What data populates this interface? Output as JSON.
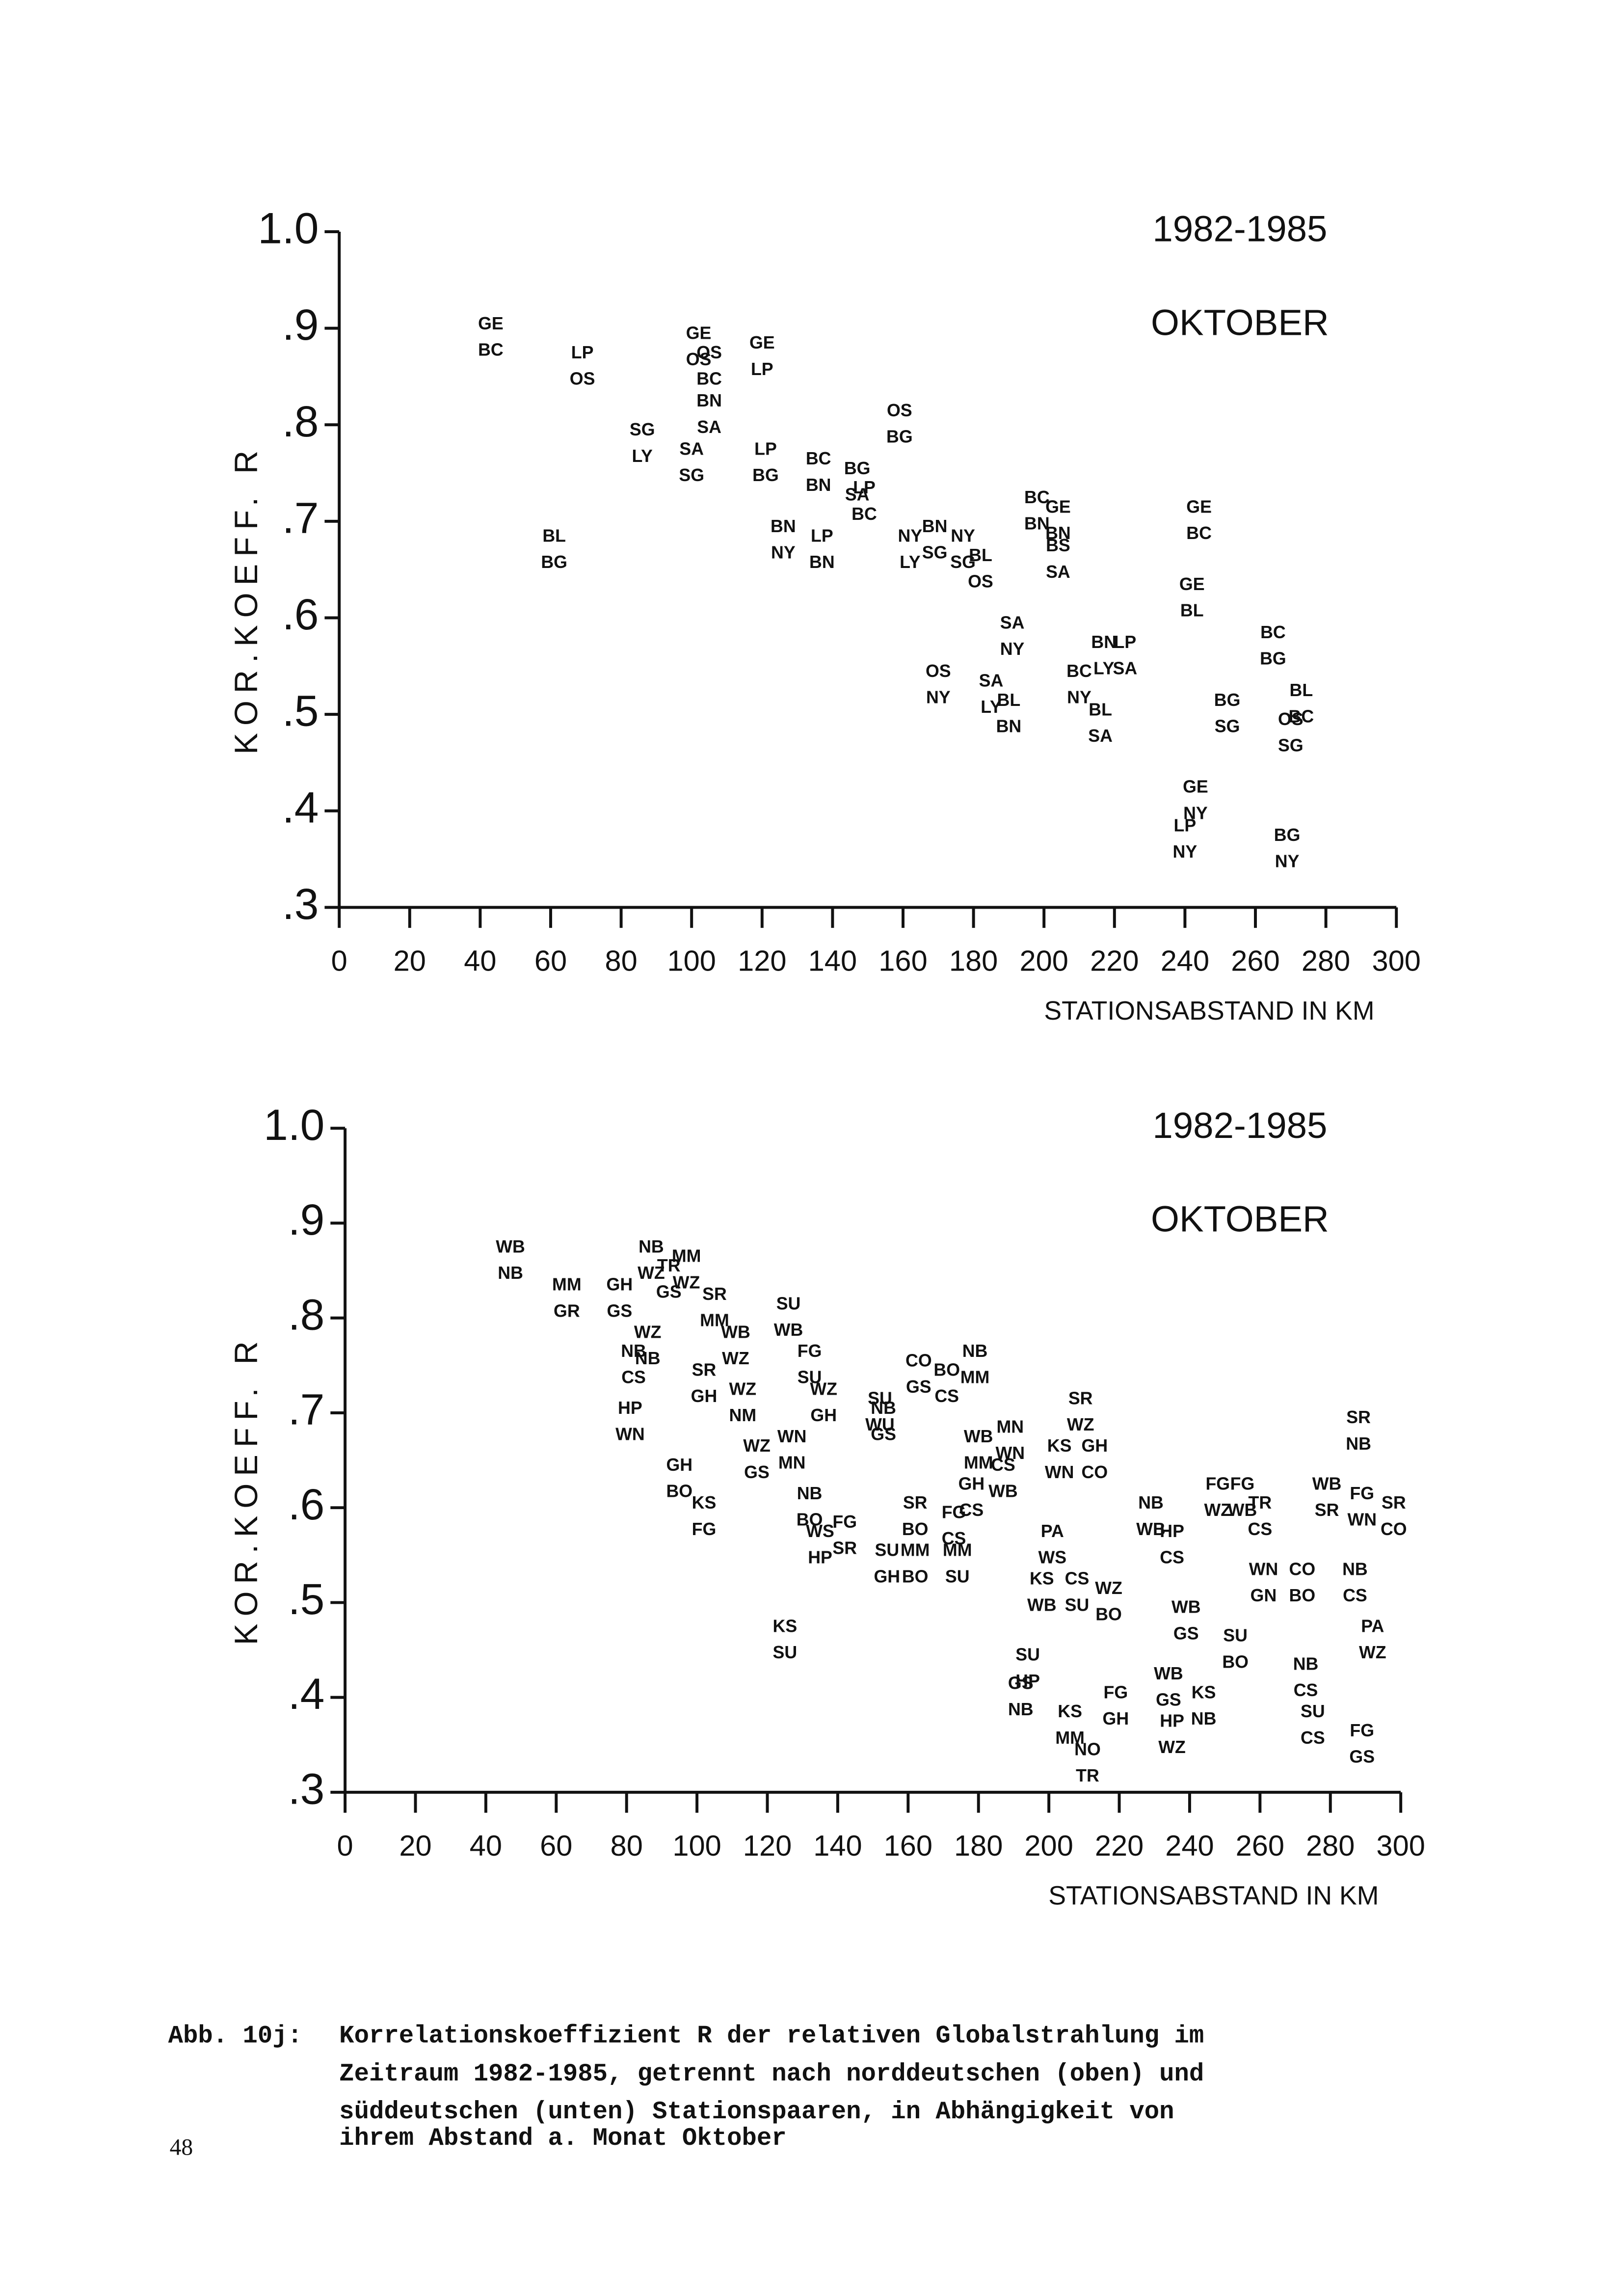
{
  "chart_data": [
    {
      "type": "scatter",
      "annotations": [
        "1982-1985",
        "OKTOBER"
      ],
      "x_label": "STATIONSABSTAND IN KM",
      "y_label": "KOR.KOEFF. R",
      "xlim": [
        0,
        300
      ],
      "ylim": [
        0.3,
        1.0
      ],
      "xticks": [
        0,
        20,
        40,
        60,
        80,
        100,
        120,
        140,
        160,
        180,
        200,
        220,
        240,
        260,
        280,
        300
      ],
      "yticks": [
        {
          "value": 0.3,
          "label": ".3"
        },
        {
          "value": 0.4,
          "label": ".4"
        },
        {
          "value": 0.5,
          "label": ".5"
        },
        {
          "value": 0.6,
          "label": ".6"
        },
        {
          "value": 0.7,
          "label": ".7"
        },
        {
          "value": 0.8,
          "label": ".8"
        },
        {
          "value": 0.9,
          "label": ".9"
        },
        {
          "value": 1.0,
          "label": "1.0"
        }
      ],
      "series": [
        {
          "color": "#111",
          "x": [
            43,
            69,
            61,
            86,
            102,
            105,
            105,
            100,
            120,
            121,
            136,
            147,
            149,
            126,
            137,
            159,
            162,
            169,
            177,
            182,
            170,
            191,
            185,
            190,
            198,
            204,
            204,
            210,
            217,
            223,
            216,
            244,
            242,
            252,
            265,
            273,
            270,
            243,
            240,
            269
          ],
          "values": [
            0.89,
            0.86,
            0.67,
            0.78,
            0.88,
            0.86,
            0.81,
            0.76,
            0.87,
            0.76,
            0.75,
            0.74,
            0.72,
            0.68,
            0.67,
            0.8,
            0.67,
            0.68,
            0.67,
            0.65,
            0.53,
            0.58,
            0.52,
            0.5,
            0.71,
            0.7,
            0.66,
            0.53,
            0.56,
            0.56,
            0.49,
            0.7,
            0.62,
            0.5,
            0.57,
            0.51,
            0.48,
            0.41,
            0.37,
            0.36
          ],
          "labels": [
            [
              "GE",
              "BC"
            ],
            [
              "LP",
              "OS"
            ],
            [
              "BL",
              "BG"
            ],
            [
              "SG",
              "LY"
            ],
            [
              "GE",
              "OS"
            ],
            [
              "OS",
              "BC"
            ],
            [
              "BN",
              "SA"
            ],
            [
              "SA",
              "SG"
            ],
            [
              "GE",
              "LP"
            ],
            [
              "LP",
              "BG"
            ],
            [
              "BC",
              "BN"
            ],
            [
              "BG",
              "SA"
            ],
            [
              "LP",
              "BC"
            ],
            [
              "BN",
              "NY"
            ],
            [
              "LP",
              "BN"
            ],
            [
              "OS",
              "BG"
            ],
            [
              "NY",
              "LY"
            ],
            [
              "BN",
              "SG"
            ],
            [
              "NY",
              "SG"
            ],
            [
              "BL",
              "OS"
            ],
            [
              "OS",
              "NY"
            ],
            [
              "SA",
              "NY"
            ],
            [
              "SA",
              "LY"
            ],
            [
              "BL",
              "BN"
            ],
            [
              "BC",
              "BN"
            ],
            [
              "GE",
              "BN"
            ],
            [
              "BS",
              "SA"
            ],
            [
              "BC",
              "NY"
            ],
            [
              "BN",
              "LY"
            ],
            [
              "LP",
              "SA"
            ],
            [
              "BL",
              "SA"
            ],
            [
              "GE",
              "BC"
            ],
            [
              "GE",
              "BL"
            ],
            [
              "BG",
              "SG"
            ],
            [
              "BC",
              "BG"
            ],
            [
              "BL",
              "BC"
            ],
            [
              "OS",
              "SG"
            ],
            [
              "GE",
              "NY"
            ],
            [
              "LP",
              "NY"
            ],
            [
              "BG",
              "NY"
            ]
          ]
        }
      ]
    },
    {
      "type": "scatter",
      "annotations": [
        "1982-1985",
        "OKTOBER"
      ],
      "x_label": "STATIONSABSTAND IN KM",
      "y_label": "KOR.KOEFF. R",
      "xlim": [
        0,
        300
      ],
      "ylim": [
        0.3,
        1.0
      ],
      "xticks": [
        0,
        20,
        40,
        60,
        80,
        100,
        120,
        140,
        160,
        180,
        200,
        220,
        240,
        260,
        280,
        300
      ],
      "yticks": [
        {
          "value": 0.3,
          "label": ".3"
        },
        {
          "value": 0.4,
          "label": ".4"
        },
        {
          "value": 0.5,
          "label": ".5"
        },
        {
          "value": 0.6,
          "label": ".6"
        },
        {
          "value": 0.7,
          "label": ".7"
        },
        {
          "value": 0.8,
          "label": ".8"
        },
        {
          "value": 0.9,
          "label": ".9"
        },
        {
          "value": 1.0,
          "label": "1.0"
        }
      ],
      "series": [
        {
          "color": "#111",
          "x": [
            47,
            63,
            78,
            87,
            92,
            97,
            86,
            82,
            81,
            105,
            111,
            102,
            113,
            126,
            132,
            136,
            95,
            102,
            117,
            127,
            132,
            135,
            142,
            125,
            154,
            152,
            153,
            163,
            171,
            179,
            162,
            162,
            173,
            174,
            178,
            180,
            189,
            187,
            209,
            203,
            213,
            201,
            198,
            208,
            217,
            194,
            192,
            206,
            219,
            211,
            229,
            235,
            248,
            255,
            260,
            239,
            234,
            244,
            235,
            253,
            261,
            272,
            273,
            275,
            279,
            288,
            289,
            298,
            287,
            292,
            289
          ],
          "values": [
            0.86,
            0.82,
            0.82,
            0.86,
            0.84,
            0.85,
            0.77,
            0.75,
            0.69,
            0.81,
            0.77,
            0.73,
            0.71,
            0.8,
            0.75,
            0.71,
            0.63,
            0.59,
            0.65,
            0.66,
            0.6,
            0.56,
            0.57,
            0.46,
            0.54,
            0.7,
            0.69,
            0.74,
            0.73,
            0.75,
            0.59,
            0.54,
            0.58,
            0.54,
            0.61,
            0.66,
            0.67,
            0.63,
            0.7,
            0.65,
            0.65,
            0.56,
            0.51,
            0.51,
            0.5,
            0.43,
            0.4,
            0.37,
            0.39,
            0.33,
            0.59,
            0.56,
            0.61,
            0.61,
            0.59,
            0.48,
            0.41,
            0.39,
            0.36,
            0.45,
            0.52,
            0.52,
            0.42,
            0.37,
            0.61,
            0.68,
            0.6,
            0.59,
            0.52,
            0.46,
            0.35
          ],
          "labels": [
            [
              "WB",
              "NB"
            ],
            [
              "MM",
              "GR"
            ],
            [
              "GH",
              "GS"
            ],
            [
              "NB",
              "WZ"
            ],
            [
              "TR",
              "GS"
            ],
            [
              "MM",
              "WZ"
            ],
            [
              "WZ",
              "NB"
            ],
            [
              "NB",
              "CS"
            ],
            [
              "HP",
              "WN"
            ],
            [
              "SR",
              "MM"
            ],
            [
              "WB",
              "WZ"
            ],
            [
              "SR",
              "GH"
            ],
            [
              "WZ",
              "NM"
            ],
            [
              "SU",
              "WB"
            ],
            [
              "FG",
              "SU"
            ],
            [
              "WZ",
              "GH"
            ],
            [
              "GH",
              "BO"
            ],
            [
              "KS",
              "FG"
            ],
            [
              "WZ",
              "GS"
            ],
            [
              "WN",
              "MN"
            ],
            [
              "NB",
              "BO"
            ],
            [
              "WS",
              "HP"
            ],
            [
              "FG",
              "SR"
            ],
            [
              "KS",
              "SU"
            ],
            [
              "SU",
              "GH"
            ],
            [
              "SU",
              "WU"
            ],
            [
              "NB",
              "GS"
            ],
            [
              "CO",
              "GS"
            ],
            [
              "BO",
              "CS"
            ],
            [
              "NB",
              "MM"
            ],
            [
              "SR",
              "BO"
            ],
            [
              "MM",
              "BO"
            ],
            [
              "FG",
              "CS"
            ],
            [
              "MM",
              "SU"
            ],
            [
              "GH",
              "CS"
            ],
            [
              "WB",
              "MM"
            ],
            [
              "MN",
              "WN"
            ],
            [
              "CS",
              "WB"
            ],
            [
              "SR",
              "WZ"
            ],
            [
              "KS",
              "WN"
            ],
            [
              "GH",
              "CO"
            ],
            [
              "PA",
              "WS"
            ],
            [
              "KS",
              "WB"
            ],
            [
              "CS",
              "SU"
            ],
            [
              "WZ",
              "BO"
            ],
            [
              "SU",
              "HP"
            ],
            [
              "GS",
              "NB"
            ],
            [
              "KS",
              "MM"
            ],
            [
              "FG",
              "GH"
            ],
            [
              "NO",
              "TR"
            ],
            [
              "NB",
              "WB"
            ],
            [
              "HP",
              "CS"
            ],
            [
              "FG",
              "WZ"
            ],
            [
              "FG",
              "WB"
            ],
            [
              "TR",
              "CS"
            ],
            [
              "WB",
              "GS"
            ],
            [
              "WB",
              "GS"
            ],
            [
              "KS",
              "NB"
            ],
            [
              "HP",
              "WZ"
            ],
            [
              "SU",
              "BO"
            ],
            [
              "WN",
              "GN"
            ],
            [
              "CO",
              "BO"
            ],
            [
              "NB",
              "CS"
            ],
            [
              "SU",
              "CS"
            ],
            [
              "WB",
              "SR"
            ],
            [
              "SR",
              "NB"
            ],
            [
              "FG",
              "WN"
            ],
            [
              "SR",
              "CO"
            ],
            [
              "NB",
              "CS"
            ],
            [
              "PA",
              "WZ"
            ],
            [
              "FG",
              "GS"
            ]
          ]
        }
      ]
    }
  ],
  "caption": {
    "label": "Abb. 10j:",
    "lines": [
      "Korrelationskoeffizient R der relativen Globalstrahlung im",
      "Zeitraum 1982-1985, getrennt nach norddeutschen (oben) und",
      "süddeutschen (unten) Stationspaaren, in Abhängigkeit von",
      "ihrem Abstand a.  Monat Oktober"
    ]
  },
  "page_number": "48"
}
